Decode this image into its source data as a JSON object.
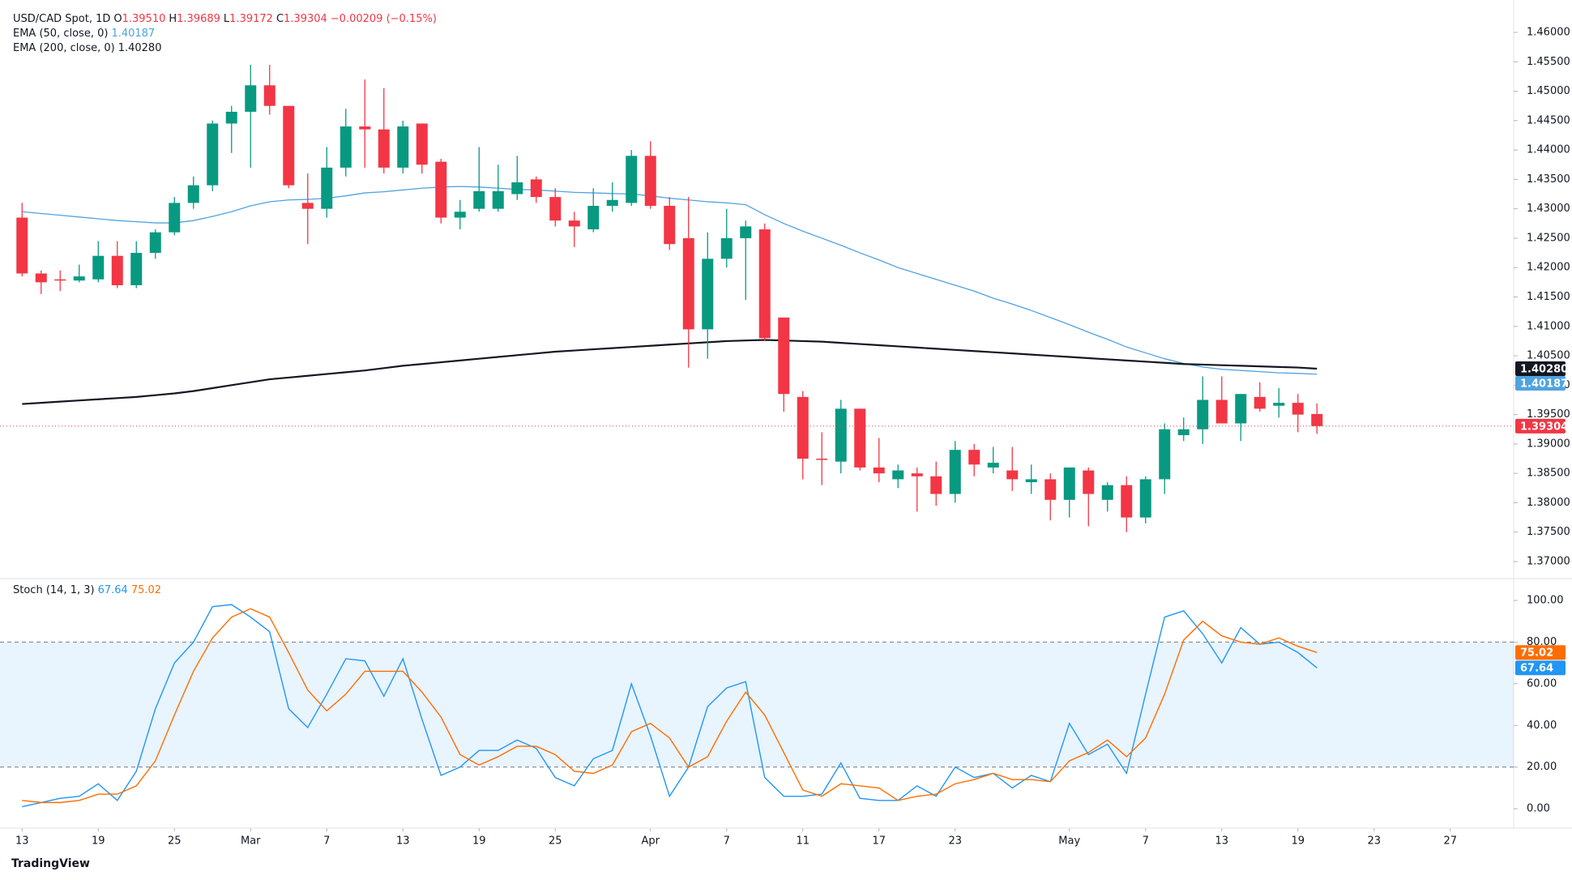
{
  "branding": "TradingView",
  "chart_data": [
    {
      "type": "candlestick",
      "title": "USD/CAD Spot, 1D",
      "ohlc_legend": [
        {
          "label": "O",
          "text": "1.39510"
        },
        {
          "label": "H",
          "text": "1.39689"
        },
        {
          "label": "L",
          "text": "1.39172"
        },
        {
          "label": "C",
          "text": "1.39304"
        }
      ],
      "change": "−0.00209 (−0.15%)",
      "close_label": "1.39304",
      "up_color": "#089981",
      "down_color": "#f23645",
      "open": [
        1.4285,
        1.419,
        1.418,
        1.4178,
        1.418,
        1.422,
        1.417,
        1.4225,
        1.426,
        1.431,
        1.434,
        1.4445,
        1.4465,
        1.451,
        1.4475,
        1.431,
        1.43,
        1.437,
        1.444,
        1.4435,
        1.437,
        1.4445,
        1.438,
        1.4285,
        1.43,
        1.43,
        1.4325,
        1.435,
        1.432,
        1.428,
        1.4265,
        1.4305,
        1.431,
        1.439,
        1.4305,
        1.425,
        1.4095,
        1.4215,
        1.425,
        1.4265,
        1.4115,
        1.398,
        1.3875,
        1.387,
        1.396,
        1.386,
        1.384,
        1.385,
        1.3845,
        1.3815,
        1.389,
        1.386,
        1.3855,
        1.3835,
        1.384,
        1.3805,
        1.3855,
        1.3805,
        1.383,
        1.3775,
        1.384,
        1.3915,
        1.3925,
        1.3975,
        1.3935,
        1.398,
        1.3965,
        1.397,
        1.3951
      ],
      "high": [
        1.431,
        1.4195,
        1.4195,
        1.4205,
        1.4245,
        1.4245,
        1.4245,
        1.4265,
        1.432,
        1.4355,
        1.445,
        1.4475,
        1.4545,
        1.4545,
        1.4475,
        1.436,
        1.4405,
        1.447,
        1.452,
        1.4505,
        1.445,
        1.4445,
        1.4385,
        1.4315,
        1.4405,
        1.4375,
        1.439,
        1.4355,
        1.4335,
        1.4295,
        1.4335,
        1.4345,
        1.44,
        1.4415,
        1.432,
        1.432,
        1.426,
        1.43,
        1.428,
        1.4275,
        1.4115,
        1.399,
        1.392,
        1.3975,
        1.396,
        1.391,
        1.3865,
        1.386,
        1.387,
        1.3905,
        1.39,
        1.3895,
        1.3895,
        1.3865,
        1.385,
        1.386,
        1.386,
        1.3835,
        1.3845,
        1.3845,
        1.3935,
        1.3945,
        1.4015,
        1.4015,
        1.3985,
        1.4005,
        1.3995,
        1.3985,
        1.39689
      ],
      "low": [
        1.4185,
        1.4155,
        1.416,
        1.4175,
        1.4175,
        1.4165,
        1.4165,
        1.4215,
        1.4255,
        1.43,
        1.433,
        1.4395,
        1.437,
        1.446,
        1.4335,
        1.424,
        1.4285,
        1.4355,
        1.437,
        1.436,
        1.436,
        1.436,
        1.4275,
        1.4265,
        1.4295,
        1.4295,
        1.4315,
        1.431,
        1.427,
        1.4235,
        1.426,
        1.4295,
        1.4305,
        1.43,
        1.423,
        1.403,
        1.4045,
        1.42,
        1.4145,
        1.4075,
        1.3955,
        1.384,
        1.383,
        1.385,
        1.3855,
        1.3835,
        1.3825,
        1.3785,
        1.3795,
        1.38,
        1.3845,
        1.385,
        1.382,
        1.3815,
        1.377,
        1.3775,
        1.376,
        1.3785,
        1.375,
        1.3765,
        1.3815,
        1.3905,
        1.39,
        1.3935,
        1.3905,
        1.3955,
        1.3945,
        1.392,
        1.39172
      ],
      "close": [
        1.419,
        1.4175,
        1.4178,
        1.4185,
        1.422,
        1.417,
        1.4225,
        1.426,
        1.431,
        1.434,
        1.4445,
        1.4465,
        1.451,
        1.4475,
        1.434,
        1.43,
        1.437,
        1.444,
        1.4435,
        1.437,
        1.444,
        1.4375,
        1.4285,
        1.4295,
        1.433,
        1.433,
        1.4345,
        1.432,
        1.428,
        1.427,
        1.4305,
        1.4315,
        1.439,
        1.4305,
        1.424,
        1.4095,
        1.4215,
        1.425,
        1.427,
        1.408,
        1.3985,
        1.3875,
        1.3873,
        1.396,
        1.386,
        1.385,
        1.3855,
        1.3845,
        1.3815,
        1.389,
        1.3865,
        1.3868,
        1.384,
        1.384,
        1.3805,
        1.386,
        1.3815,
        1.383,
        1.3775,
        1.384,
        1.3925,
        1.3925,
        1.3975,
        1.3935,
        1.3985,
        1.396,
        1.397,
        1.395,
        1.39304
      ],
      "series": [
        {
          "name": "EMA (50, close, 0)",
          "label": "1.40187",
          "color": "#4fa3e0",
          "values": [
            1.4295,
            1.4292,
            1.4289,
            1.4286,
            1.4283,
            1.428,
            1.4278,
            1.4276,
            1.4276,
            1.428,
            1.4287,
            1.4295,
            1.4305,
            1.4312,
            1.4315,
            1.4316,
            1.4318,
            1.4322,
            1.4327,
            1.4329,
            1.4332,
            1.4335,
            1.4337,
            1.4338,
            1.4337,
            1.4335,
            1.4333,
            1.4332,
            1.433,
            1.4328,
            1.4327,
            1.4326,
            1.4325,
            1.4322,
            1.4318,
            1.4315,
            1.4312,
            1.431,
            1.4307,
            1.429,
            1.4275,
            1.4262,
            1.425,
            1.4238,
            1.4225,
            1.4213,
            1.42,
            1.419,
            1.418,
            1.417,
            1.416,
            1.4148,
            1.4138,
            1.4127,
            1.4115,
            1.4103,
            1.409,
            1.4078,
            1.4065,
            1.4055,
            1.4045,
            1.4037,
            1.4031,
            1.4027,
            1.4025,
            1.4023,
            1.4021,
            1.402,
            1.40187
          ]
        },
        {
          "name": "EMA (200, close, 0)",
          "label": "1.40280",
          "color": "#131722",
          "values": [
            1.3968,
            1.397,
            1.3972,
            1.3974,
            1.3976,
            1.3978,
            1.398,
            1.3983,
            1.3986,
            1.399,
            1.3995,
            1.4,
            1.4005,
            1.401,
            1.4013,
            1.4016,
            1.4019,
            1.4022,
            1.4025,
            1.4029,
            1.4033,
            1.4036,
            1.4039,
            1.4042,
            1.4045,
            1.4048,
            1.4051,
            1.4054,
            1.4057,
            1.4059,
            1.4061,
            1.4063,
            1.4065,
            1.4067,
            1.4069,
            1.4071,
            1.4073,
            1.4075,
            1.4076,
            1.4077,
            1.4076,
            1.4075,
            1.4074,
            1.4072,
            1.407,
            1.4068,
            1.4066,
            1.4064,
            1.4062,
            1.406,
            1.4058,
            1.4056,
            1.4054,
            1.4052,
            1.405,
            1.4048,
            1.4046,
            1.4044,
            1.4042,
            1.404,
            1.4038,
            1.4036,
            1.4035,
            1.4034,
            1.4033,
            1.4032,
            1.4031,
            1.403,
            1.4028
          ]
        }
      ],
      "ylim": [
        1.36711,
        1.46551
      ],
      "yticks": [
        {
          "value": 1.37,
          "label": "1.37000"
        },
        {
          "value": 1.375,
          "label": "1.37500"
        },
        {
          "value": 1.38,
          "label": "1.38000"
        },
        {
          "value": 1.385,
          "label": "1.38500"
        },
        {
          "value": 1.39,
          "label": "1.39000"
        },
        {
          "value": 1.395,
          "label": "1.39500"
        },
        {
          "value": 1.4,
          "label": "1.40000"
        },
        {
          "value": 1.405,
          "label": "1.40500"
        },
        {
          "value": 1.41,
          "label": "1.41000"
        },
        {
          "value": 1.415,
          "label": "1.41500"
        },
        {
          "value": 1.42,
          "label": "1.42000"
        },
        {
          "value": 1.425,
          "label": "1.42500"
        },
        {
          "value": 1.43,
          "label": "1.43000"
        },
        {
          "value": 1.435,
          "label": "1.43500"
        },
        {
          "value": 1.44,
          "label": "1.44000"
        },
        {
          "value": 1.445,
          "label": "1.44500"
        },
        {
          "value": 1.45,
          "label": "1.45000"
        },
        {
          "value": 1.455,
          "label": "1.45500"
        },
        {
          "value": 1.46,
          "label": "1.46000"
        }
      ],
      "grid": false
    },
    {
      "type": "line",
      "title": "Stoch (14, 1, 3)",
      "series": [
        {
          "label": "67.64",
          "color": "#2196f3",
          "values": [
            1,
            3,
            5,
            6,
            12,
            4,
            18,
            48,
            70,
            80,
            97,
            98,
            92,
            85,
            48,
            39,
            55,
            72,
            71,
            54,
            72,
            43,
            16,
            20,
            28,
            28,
            33,
            29,
            15,
            11,
            24,
            28,
            60,
            35,
            6,
            20,
            49,
            58,
            61,
            15,
            6,
            6,
            7,
            22,
            5,
            4,
            4,
            11,
            6,
            20,
            15,
            17,
            10,
            16,
            13,
            41,
            26,
            31,
            17,
            55,
            92,
            95,
            84,
            70,
            87,
            79,
            80,
            75,
            67.64
          ]
        },
        {
          "label": "75.02",
          "color": "#ff6d00",
          "values": [
            4,
            3,
            3,
            4,
            7,
            7,
            11,
            23,
            45,
            66,
            82,
            92,
            96,
            92,
            75,
            57,
            47,
            55,
            66,
            66,
            66,
            56,
            44,
            26,
            21,
            25,
            30,
            30,
            26,
            18,
            17,
            21,
            37,
            41,
            34,
            20,
            25,
            42,
            56,
            45,
            27,
            9,
            6,
            12,
            11,
            10,
            4,
            6,
            7,
            12,
            14,
            17,
            14,
            14,
            13,
            23,
            27,
            33,
            25,
            34,
            55,
            81,
            90,
            83,
            80,
            79,
            82,
            78,
            75.02
          ]
        }
      ],
      "band": [
        20,
        80
      ],
      "band_color": "#2196f3",
      "ylim": [
        -9.3,
        110.5
      ],
      "yticks": [
        {
          "value": 0,
          "label": "0.00"
        },
        {
          "value": 20,
          "label": "20.00"
        },
        {
          "value": 40,
          "label": "40.00"
        },
        {
          "value": 60,
          "label": "60.00"
        },
        {
          "value": 80,
          "label": "80.00"
        },
        {
          "value": 100,
          "label": "100.00"
        }
      ],
      "xlim": [
        -1.16,
        78.33
      ],
      "xticks": [
        {
          "value": 0,
          "label": "13"
        },
        {
          "value": 4,
          "label": "19"
        },
        {
          "value": 8,
          "label": "25"
        },
        {
          "value": 12,
          "label": "Mar"
        },
        {
          "value": 16,
          "label": "7"
        },
        {
          "value": 20,
          "label": "13"
        },
        {
          "value": 24,
          "label": "19"
        },
        {
          "value": 28,
          "label": "25"
        },
        {
          "value": 33,
          "label": "Apr"
        },
        {
          "value": 37,
          "label": "7"
        },
        {
          "value": 41,
          "label": "11"
        },
        {
          "value": 45,
          "label": "17"
        },
        {
          "value": 49,
          "label": "23"
        },
        {
          "value": 55,
          "label": "May"
        },
        {
          "value": 59,
          "label": "7"
        },
        {
          "value": 63,
          "label": "13"
        },
        {
          "value": 67,
          "label": "19"
        },
        {
          "value": 71,
          "label": "23"
        },
        {
          "value": 75,
          "label": "27"
        }
      ],
      "grid": false
    }
  ]
}
